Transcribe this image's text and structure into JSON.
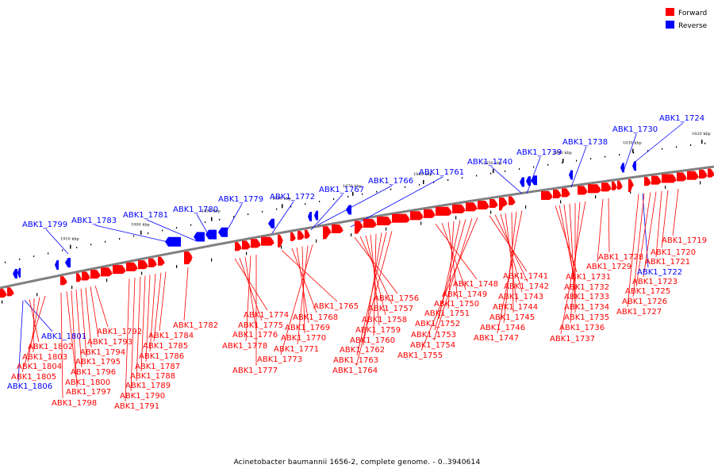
{
  "legend": {
    "forward": {
      "label": "Forward",
      "color": "#ff0000"
    },
    "reverse": {
      "label": "Reverse",
      "color": "#0000ff"
    }
  },
  "caption": "Acinetobacter baumannii 1656-2, complete genome. - 0..3940614",
  "scale_ticks": [
    "1910 kbp",
    "1900 kbp",
    "1890 kbp",
    "1880 kbp",
    "1870 kbp",
    "1860 kbp",
    "1850 kbp",
    "1840 kbp",
    "1830 kbp",
    "1820 kbp"
  ],
  "reverse_labels": [
    "ABK1_1799",
    "ABK1_1783",
    "ABK1_1781",
    "ABK1_1780",
    "ABK1_1779",
    "ABK1_1772",
    "ABK1_1767",
    "ABK1_1766",
    "ABK1_1761",
    "ABK1_1740",
    "ABK1_1739",
    "ABK1_1738",
    "ABK1_1730",
    "ABK1_1724"
  ],
  "left_labels": [
    {
      "text": "ABK1_1801",
      "strand": "reverse"
    },
    {
      "text": "ABK1_1802",
      "strand": "forward"
    },
    {
      "text": "ABK1_1803",
      "strand": "forward"
    },
    {
      "text": "ABK1_1804",
      "strand": "forward"
    },
    {
      "text": "ABK1_1805",
      "strand": "forward"
    },
    {
      "text": "ABK1_1806",
      "strand": "reverse"
    },
    {
      "text": "ABK1_1792",
      "strand": "forward"
    },
    {
      "text": "ABK1_1793",
      "strand": "forward"
    },
    {
      "text": "ABK1_1794",
      "strand": "forward"
    },
    {
      "text": "ABK1_1795",
      "strand": "forward"
    },
    {
      "text": "ABK1_1796",
      "strand": "forward"
    },
    {
      "text": "ABK1_1797",
      "strand": "forward"
    },
    {
      "text": "ABK1_1798",
      "strand": "forward"
    },
    {
      "text": "ABK1_1800",
      "strand": "forward"
    },
    {
      "text": "ABK1_1782",
      "strand": "forward"
    },
    {
      "text": "ABK1_1784",
      "strand": "forward"
    },
    {
      "text": "ABK1_1785",
      "strand": "forward"
    },
    {
      "text": "ABK1_1786",
      "strand": "forward"
    },
    {
      "text": "ABK1_1787",
      "strand": "forward"
    },
    {
      "text": "ABK1_1788",
      "strand": "forward"
    },
    {
      "text": "ABK1_1789",
      "strand": "forward"
    },
    {
      "text": "ABK1_1790",
      "strand": "forward"
    },
    {
      "text": "ABK1_1791",
      "strand": "forward"
    }
  ],
  "middle_labels": [
    "ABK1_1774",
    "ABK1_1775",
    "ABK1_1776",
    "ABK1_1778",
    "ABK1_1777",
    "ABK1_1765",
    "ABK1_1768",
    "ABK1_1769",
    "ABK1_1770",
    "ABK1_1771",
    "ABK1_1773",
    "ABK1_1756",
    "ABK1_1757",
    "ABK1_1758",
    "ABK1_1759",
    "ABK1_1760",
    "ABK1_1762",
    "ABK1_1763",
    "ABK1_1764",
    "ABK1_1748",
    "ABK1_1749",
    "ABK1_1750",
    "ABK1_1751",
    "ABK1_1752",
    "ABK1_1753",
    "ABK1_1754",
    "ABK1_1755",
    "ABK1_1741",
    "ABK1_1742",
    "ABK1_1743",
    "ABK1_1744",
    "ABK1_1745",
    "ABK1_1746",
    "ABK1_1747"
  ],
  "right_labels": [
    {
      "text": "ABK1_1719",
      "strand": "forward"
    },
    {
      "text": "ABK1_1720",
      "strand": "forward"
    },
    {
      "text": "ABK1_1728",
      "strand": "forward"
    },
    {
      "text": "ABK1_1721",
      "strand": "forward"
    },
    {
      "text": "ABK1_1729",
      "strand": "forward"
    },
    {
      "text": "ABK1_1722",
      "strand": "reverse"
    },
    {
      "text": "ABK1_1731",
      "strand": "forward"
    },
    {
      "text": "ABK1_1723",
      "strand": "forward"
    },
    {
      "text": "ABK1_1732",
      "strand": "forward"
    },
    {
      "text": "ABK1_1725",
      "strand": "forward"
    },
    {
      "text": "ABK1_1733",
      "strand": "forward"
    },
    {
      "text": "ABK1_1726",
      "strand": "forward"
    },
    {
      "text": "ABK1_1734",
      "strand": "forward"
    },
    {
      "text": "ABK1_1727",
      "strand": "forward"
    },
    {
      "text": "ABK1_1735",
      "strand": "forward"
    },
    {
      "text": "ABK1_1736",
      "strand": "forward"
    },
    {
      "text": "ABK1_1737",
      "strand": "forward"
    }
  ]
}
